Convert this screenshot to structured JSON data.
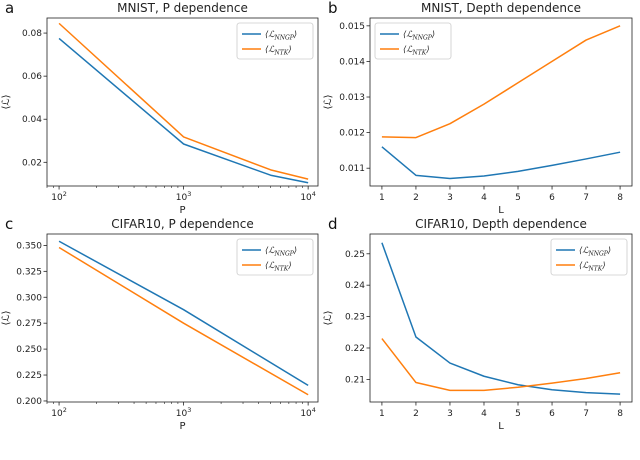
{
  "colors": {
    "nngp": "#1f77b4",
    "ntk": "#ff7f0e"
  },
  "chart_data": [
    {
      "type": "line",
      "letter": "a",
      "title": "MNIST, P dependence",
      "xlabel": "P",
      "ylabel": "⟨ℒ⟩",
      "xscale": "log",
      "xlim": [
        80,
        12000
      ],
      "ylim": [
        0.009,
        0.087
      ],
      "xticks": [
        {
          "value": 100,
          "base": "10",
          "exp": "2"
        },
        {
          "value": 1000,
          "base": "10",
          "exp": "3"
        },
        {
          "value": 10000,
          "base": "10",
          "exp": "4"
        }
      ],
      "yticks": [
        0.02,
        0.04,
        0.06,
        0.08
      ],
      "ytick_labels": [
        "0.02",
        "0.04",
        "0.06",
        "0.08"
      ],
      "legend_position": "top-right",
      "x": [
        100,
        1000,
        5000,
        10000
      ],
      "series": [
        {
          "name": "NNGP",
          "legend": "⟨ℒ",
          "sub": "NNGP",
          "close": "⟩",
          "color_key": "nngp",
          "values": [
            0.0775,
            0.0285,
            0.014,
            0.0105
          ]
        },
        {
          "name": "NTK",
          "legend": "⟨ℒ",
          "sub": "NTK",
          "close": "⟩",
          "color_key": "ntk",
          "values": [
            0.0845,
            0.0318,
            0.0165,
            0.0122
          ]
        }
      ]
    },
    {
      "type": "line",
      "letter": "b",
      "title": "MNIST, Depth dependence",
      "xlabel": "L",
      "ylabel": "⟨ℒ⟩",
      "xscale": "linear",
      "xlim": [
        0.65,
        8.35
      ],
      "ylim": [
        0.0105,
        0.01522
      ],
      "xticks": [
        {
          "value": 1,
          "label": "1"
        },
        {
          "value": 2,
          "label": "2"
        },
        {
          "value": 3,
          "label": "3"
        },
        {
          "value": 4,
          "label": "4"
        },
        {
          "value": 5,
          "label": "5"
        },
        {
          "value": 6,
          "label": "6"
        },
        {
          "value": 7,
          "label": "7"
        },
        {
          "value": 8,
          "label": "8"
        }
      ],
      "yticks": [
        0.011,
        0.012,
        0.013,
        0.014,
        0.015
      ],
      "ytick_labels": [
        "0.011",
        "0.012",
        "0.013",
        "0.014",
        "0.015"
      ],
      "legend_position": "top-left",
      "x": [
        1,
        2,
        3,
        4,
        5,
        6,
        7,
        8
      ],
      "series": [
        {
          "name": "NNGP",
          "legend": "⟨ℒ",
          "sub": "NNGP",
          "close": "⟩",
          "color_key": "nngp",
          "values": [
            0.0116,
            0.0108,
            0.01071,
            0.01078,
            0.01091,
            0.01108,
            0.01126,
            0.01145
          ]
        },
        {
          "name": "NTK",
          "legend": "⟨ℒ",
          "sub": "NTK",
          "close": "⟩",
          "color_key": "ntk",
          "values": [
            0.01188,
            0.01186,
            0.01225,
            0.0128,
            0.0134,
            0.014,
            0.0146,
            0.015
          ]
        }
      ]
    },
    {
      "type": "line",
      "letter": "c",
      "title": "CIFAR10, P dependence",
      "xlabel": "P",
      "ylabel": "⟨ℒ⟩",
      "xscale": "log",
      "xlim": [
        80,
        12000
      ],
      "ylim": [
        0.199,
        0.361
      ],
      "xticks": [
        {
          "value": 100,
          "base": "10",
          "exp": "2"
        },
        {
          "value": 1000,
          "base": "10",
          "exp": "3"
        },
        {
          "value": 10000,
          "base": "10",
          "exp": "4"
        }
      ],
      "yticks": [
        0.2,
        0.225,
        0.25,
        0.275,
        0.3,
        0.325,
        0.35
      ],
      "ytick_labels": [
        "0.200",
        "0.225",
        "0.250",
        "0.275",
        "0.300",
        "0.325",
        "0.350"
      ],
      "legend_position": "top-right",
      "x": [
        100,
        1000,
        10000
      ],
      "series": [
        {
          "name": "NNGP",
          "legend": "⟨ℒ",
          "sub": "NNGP",
          "close": "⟩",
          "color_key": "nngp",
          "values": [
            0.354,
            0.288,
            0.215
          ]
        },
        {
          "name": "NTK",
          "legend": "⟨ℒ",
          "sub": "NTK",
          "close": "⟩",
          "color_key": "ntk",
          "values": [
            0.348,
            0.275,
            0.206
          ]
        }
      ]
    },
    {
      "type": "line",
      "letter": "d",
      "title": "CIFAR10, Depth dependence",
      "xlabel": "L",
      "ylabel": "⟨ℒ⟩",
      "xscale": "linear",
      "xlim": [
        0.65,
        8.35
      ],
      "ylim": [
        0.2028,
        0.2563
      ],
      "xticks": [
        {
          "value": 1,
          "label": "1"
        },
        {
          "value": 2,
          "label": "2"
        },
        {
          "value": 3,
          "label": "3"
        },
        {
          "value": 4,
          "label": "4"
        },
        {
          "value": 5,
          "label": "5"
        },
        {
          "value": 6,
          "label": "6"
        },
        {
          "value": 7,
          "label": "7"
        },
        {
          "value": 8,
          "label": "8"
        }
      ],
      "yticks": [
        0.21,
        0.22,
        0.23,
        0.24,
        0.25
      ],
      "ytick_labels": [
        "0.21",
        "0.22",
        "0.23",
        "0.24",
        "0.25"
      ],
      "legend_position": "top-right",
      "x": [
        1,
        2,
        3,
        4,
        5,
        6,
        7,
        8
      ],
      "series": [
        {
          "name": "NNGP",
          "legend": "⟨ℒ",
          "sub": "NNGP",
          "close": "⟩",
          "color_key": "nngp",
          "values": [
            0.2535,
            0.2235,
            0.2152,
            0.211,
            0.2083,
            0.2067,
            0.2058,
            0.2053
          ]
        },
        {
          "name": "NTK",
          "legend": "⟨ℒ",
          "sub": "NTK",
          "close": "⟩",
          "color_key": "ntk",
          "values": [
            0.223,
            0.209,
            0.2065,
            0.2065,
            0.2075,
            0.2088,
            0.2103,
            0.2121
          ]
        }
      ]
    }
  ]
}
